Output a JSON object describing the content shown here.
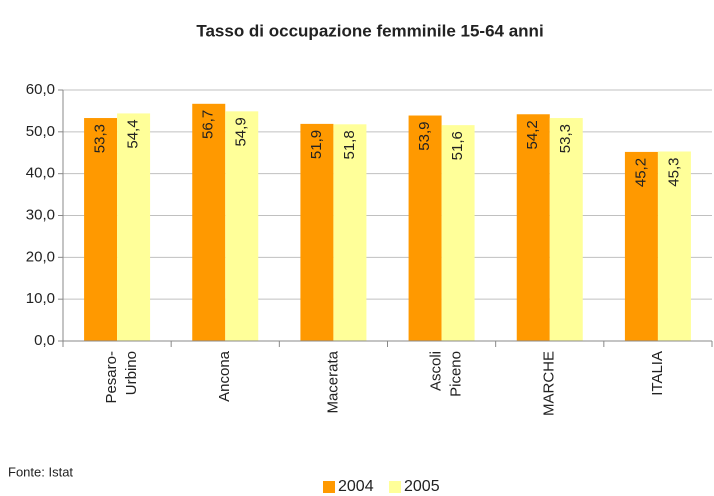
{
  "chart_data": {
    "type": "bar",
    "title": "Tasso di occupazione femminile 15-64 anni",
    "categories": [
      "Pesaro-Urbino",
      "Ancona",
      "Macerata",
      "Ascoli Piceno",
      "MARCHE",
      "ITALIA"
    ],
    "series": [
      {
        "name": "2004",
        "color": "#ff9900",
        "values": [
          53.3,
          56.7,
          51.9,
          53.9,
          54.2,
          45.2
        ],
        "value_labels": [
          "53,3",
          "56,7",
          "51,9",
          "53,9",
          "54,2",
          "45,2"
        ]
      },
      {
        "name": "2005",
        "color": "#ffff99",
        "values": [
          54.4,
          54.9,
          51.8,
          51.6,
          53.3,
          45.3
        ],
        "value_labels": [
          "54,4",
          "54,9",
          "51,8",
          "51,6",
          "53,3",
          "45,3"
        ]
      }
    ],
    "ylim": [
      0,
      60
    ],
    "yticks": [
      {
        "value": 0,
        "label": "0,0"
      },
      {
        "value": 10,
        "label": "10,0"
      },
      {
        "value": 20,
        "label": "20,0"
      },
      {
        "value": 30,
        "label": "30,0"
      },
      {
        "value": 40,
        "label": "40,0"
      },
      {
        "value": 50,
        "label": "50,0"
      },
      {
        "value": 60,
        "label": "60,0"
      }
    ],
    "grid": true,
    "legend": "bottom",
    "source": "Fonte: Istat"
  }
}
